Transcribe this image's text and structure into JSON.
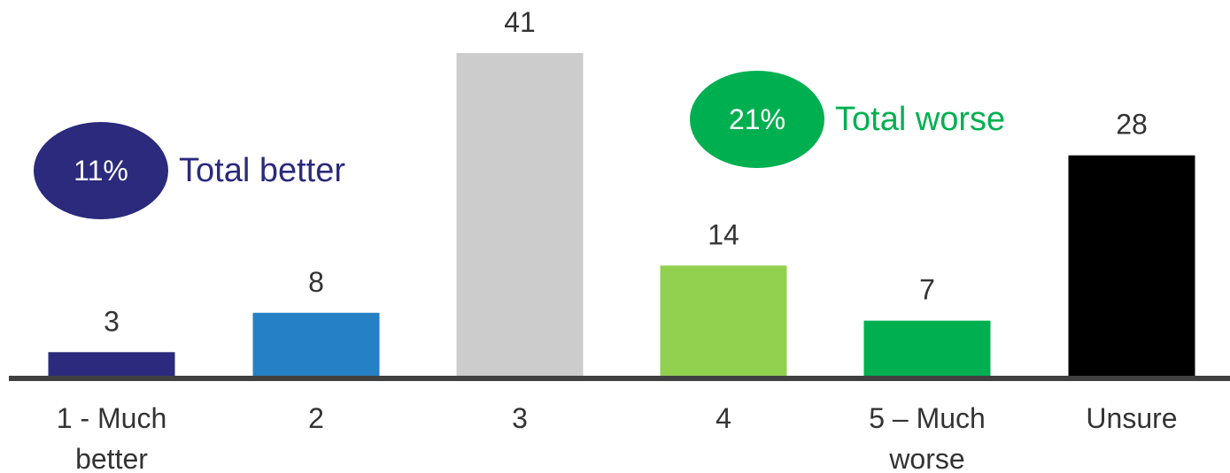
{
  "chart_data": {
    "type": "bar",
    "categories": [
      "1 - Much better",
      "2",
      "3",
      "4",
      "5 – Much worse",
      "Unsure"
    ],
    "category_lines": [
      [
        "1 - Much",
        "better"
      ],
      [
        "2"
      ],
      [
        "3"
      ],
      [
        "4"
      ],
      [
        "5 – Much",
        "worse"
      ],
      [
        "Unsure"
      ]
    ],
    "values": [
      3,
      8,
      41,
      14,
      7,
      28
    ],
    "value_labels": [
      "3",
      "8",
      "41",
      "14",
      "7",
      "28"
    ],
    "bar_colors": [
      "#2b2a7c",
      "#2581c4",
      "#cccccc",
      "#92d050",
      "#00b050",
      "#000000"
    ],
    "ylim": [
      0,
      41
    ],
    "baseline_color": "#404040"
  },
  "callouts": {
    "better": {
      "pct": "11%",
      "label": "Total better",
      "color": "#2b2a7c"
    },
    "worse": {
      "pct": "21%",
      "label": "Total worse",
      "color": "#00b050"
    }
  }
}
